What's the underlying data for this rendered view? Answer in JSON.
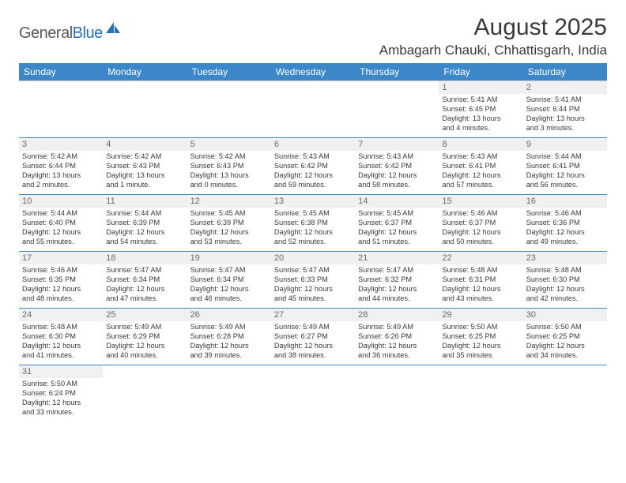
{
  "brand": {
    "part1": "General",
    "part2": "Blue"
  },
  "title": "August 2025",
  "location": "Ambagarh Chauki, Chhattisgarh, India",
  "colors": {
    "header_bg": "#3b87c8",
    "header_text": "#ffffff",
    "row_separator": "#3b87c8",
    "daynum_bg": "#f0f0f0",
    "text": "#3a3a3a",
    "logo_gray": "#5a5a5a",
    "logo_blue": "#2a6fb5",
    "background": "#ffffff"
  },
  "typography": {
    "title_fontsize": 30,
    "location_fontsize": 17,
    "header_fontsize": 12,
    "cell_fontsize": 9.2,
    "daynum_fontsize": 11
  },
  "day_headers": [
    "Sunday",
    "Monday",
    "Tuesday",
    "Wednesday",
    "Thursday",
    "Friday",
    "Saturday"
  ],
  "weeks": [
    [
      null,
      null,
      null,
      null,
      null,
      {
        "n": "1",
        "sr": "Sunrise: 5:41 AM",
        "ss": "Sunset: 6:45 PM",
        "d1": "Daylight: 13 hours",
        "d2": "and 4 minutes."
      },
      {
        "n": "2",
        "sr": "Sunrise: 5:41 AM",
        "ss": "Sunset: 6:44 PM",
        "d1": "Daylight: 13 hours",
        "d2": "and 3 minutes."
      }
    ],
    [
      {
        "n": "3",
        "sr": "Sunrise: 5:42 AM",
        "ss": "Sunset: 6:44 PM",
        "d1": "Daylight: 13 hours",
        "d2": "and 2 minutes."
      },
      {
        "n": "4",
        "sr": "Sunrise: 5:42 AM",
        "ss": "Sunset: 6:43 PM",
        "d1": "Daylight: 13 hours",
        "d2": "and 1 minute."
      },
      {
        "n": "5",
        "sr": "Sunrise: 5:42 AM",
        "ss": "Sunset: 6:43 PM",
        "d1": "Daylight: 13 hours",
        "d2": "and 0 minutes."
      },
      {
        "n": "6",
        "sr": "Sunrise: 5:43 AM",
        "ss": "Sunset: 6:42 PM",
        "d1": "Daylight: 12 hours",
        "d2": "and 59 minutes."
      },
      {
        "n": "7",
        "sr": "Sunrise: 5:43 AM",
        "ss": "Sunset: 6:42 PM",
        "d1": "Daylight: 12 hours",
        "d2": "and 58 minutes."
      },
      {
        "n": "8",
        "sr": "Sunrise: 5:43 AM",
        "ss": "Sunset: 6:41 PM",
        "d1": "Daylight: 12 hours",
        "d2": "and 57 minutes."
      },
      {
        "n": "9",
        "sr": "Sunrise: 5:44 AM",
        "ss": "Sunset: 6:41 PM",
        "d1": "Daylight: 12 hours",
        "d2": "and 56 minutes."
      }
    ],
    [
      {
        "n": "10",
        "sr": "Sunrise: 5:44 AM",
        "ss": "Sunset: 6:40 PM",
        "d1": "Daylight: 12 hours",
        "d2": "and 55 minutes."
      },
      {
        "n": "11",
        "sr": "Sunrise: 5:44 AM",
        "ss": "Sunset: 6:39 PM",
        "d1": "Daylight: 12 hours",
        "d2": "and 54 minutes."
      },
      {
        "n": "12",
        "sr": "Sunrise: 5:45 AM",
        "ss": "Sunset: 6:39 PM",
        "d1": "Daylight: 12 hours",
        "d2": "and 53 minutes."
      },
      {
        "n": "13",
        "sr": "Sunrise: 5:45 AM",
        "ss": "Sunset: 6:38 PM",
        "d1": "Daylight: 12 hours",
        "d2": "and 52 minutes."
      },
      {
        "n": "14",
        "sr": "Sunrise: 5:45 AM",
        "ss": "Sunset: 6:37 PM",
        "d1": "Daylight: 12 hours",
        "d2": "and 51 minutes."
      },
      {
        "n": "15",
        "sr": "Sunrise: 5:46 AM",
        "ss": "Sunset: 6:37 PM",
        "d1": "Daylight: 12 hours",
        "d2": "and 50 minutes."
      },
      {
        "n": "16",
        "sr": "Sunrise: 5:46 AM",
        "ss": "Sunset: 6:36 PM",
        "d1": "Daylight: 12 hours",
        "d2": "and 49 minutes."
      }
    ],
    [
      {
        "n": "17",
        "sr": "Sunrise: 5:46 AM",
        "ss": "Sunset: 6:35 PM",
        "d1": "Daylight: 12 hours",
        "d2": "and 48 minutes."
      },
      {
        "n": "18",
        "sr": "Sunrise: 5:47 AM",
        "ss": "Sunset: 6:34 PM",
        "d1": "Daylight: 12 hours",
        "d2": "and 47 minutes."
      },
      {
        "n": "19",
        "sr": "Sunrise: 5:47 AM",
        "ss": "Sunset: 6:34 PM",
        "d1": "Daylight: 12 hours",
        "d2": "and 46 minutes."
      },
      {
        "n": "20",
        "sr": "Sunrise: 5:47 AM",
        "ss": "Sunset: 6:33 PM",
        "d1": "Daylight: 12 hours",
        "d2": "and 45 minutes."
      },
      {
        "n": "21",
        "sr": "Sunrise: 5:47 AM",
        "ss": "Sunset: 6:32 PM",
        "d1": "Daylight: 12 hours",
        "d2": "and 44 minutes."
      },
      {
        "n": "22",
        "sr": "Sunrise: 5:48 AM",
        "ss": "Sunset: 6:31 PM",
        "d1": "Daylight: 12 hours",
        "d2": "and 43 minutes."
      },
      {
        "n": "23",
        "sr": "Sunrise: 5:48 AM",
        "ss": "Sunset: 6:30 PM",
        "d1": "Daylight: 12 hours",
        "d2": "and 42 minutes."
      }
    ],
    [
      {
        "n": "24",
        "sr": "Sunrise: 5:48 AM",
        "ss": "Sunset: 6:30 PM",
        "d1": "Daylight: 12 hours",
        "d2": "and 41 minutes."
      },
      {
        "n": "25",
        "sr": "Sunrise: 5:49 AM",
        "ss": "Sunset: 6:29 PM",
        "d1": "Daylight: 12 hours",
        "d2": "and 40 minutes."
      },
      {
        "n": "26",
        "sr": "Sunrise: 5:49 AM",
        "ss": "Sunset: 6:28 PM",
        "d1": "Daylight: 12 hours",
        "d2": "and 39 minutes."
      },
      {
        "n": "27",
        "sr": "Sunrise: 5:49 AM",
        "ss": "Sunset: 6:27 PM",
        "d1": "Daylight: 12 hours",
        "d2": "and 38 minutes."
      },
      {
        "n": "28",
        "sr": "Sunrise: 5:49 AM",
        "ss": "Sunset: 6:26 PM",
        "d1": "Daylight: 12 hours",
        "d2": "and 36 minutes."
      },
      {
        "n": "29",
        "sr": "Sunrise: 5:50 AM",
        "ss": "Sunset: 6:25 PM",
        "d1": "Daylight: 12 hours",
        "d2": "and 35 minutes."
      },
      {
        "n": "30",
        "sr": "Sunrise: 5:50 AM",
        "ss": "Sunset: 6:25 PM",
        "d1": "Daylight: 12 hours",
        "d2": "and 34 minutes."
      }
    ],
    [
      {
        "n": "31",
        "sr": "Sunrise: 5:50 AM",
        "ss": "Sunset: 6:24 PM",
        "d1": "Daylight: 12 hours",
        "d2": "and 33 minutes."
      },
      null,
      null,
      null,
      null,
      null,
      null
    ]
  ]
}
